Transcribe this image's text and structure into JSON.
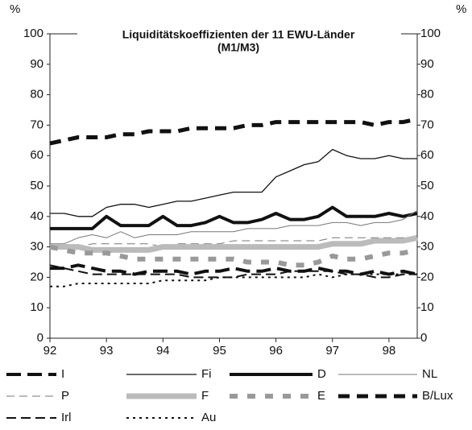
{
  "chart_data": {
    "type": "line",
    "title": "Liquiditätskoeffizienten der 11 EWU-Länder",
    "subtitle": "(M1/M3)",
    "y_label": "%",
    "x": [
      92,
      92.25,
      92.5,
      92.75,
      93,
      93.25,
      93.5,
      93.75,
      94,
      94.25,
      94.5,
      94.75,
      95,
      95.25,
      95.5,
      95.75,
      96,
      96.25,
      96.5,
      96.75,
      97,
      97.25,
      97.5,
      97.75,
      98,
      98.25,
      98.5
    ],
    "xlim": [
      92,
      98.5
    ],
    "xticks": [
      92,
      93,
      94,
      95,
      96,
      97,
      98
    ],
    "ylim": [
      0,
      100
    ],
    "yticks": [
      0,
      10,
      20,
      30,
      40,
      50,
      60,
      70,
      80,
      90,
      100
    ],
    "series": [
      {
        "name": "I",
        "color": "#111111",
        "values": [
          23,
          23,
          24,
          23,
          22,
          22,
          21,
          22,
          22,
          22,
          21,
          22,
          22,
          23,
          22,
          22,
          23,
          22,
          22,
          23,
          22,
          22,
          21,
          22,
          21,
          22,
          21
        ]
      },
      {
        "name": "Fi",
        "color": "#111111",
        "values": [
          41,
          41,
          40,
          40,
          43,
          44,
          44,
          43,
          44,
          45,
          45,
          46,
          47,
          48,
          48,
          48,
          53,
          55,
          57,
          58,
          62,
          60,
          59,
          59,
          60,
          59,
          59
        ]
      },
      {
        "name": "D",
        "color": "#111111",
        "values": [
          36,
          36,
          36,
          36,
          40,
          37,
          37,
          37,
          40,
          37,
          37,
          38,
          40,
          38,
          38,
          39,
          41,
          39,
          39,
          40,
          43,
          40,
          40,
          40,
          41,
          40,
          41
        ]
      },
      {
        "name": "NL",
        "color": "#777777",
        "values": [
          31,
          31,
          33,
          34,
          33,
          35,
          33,
          34,
          34,
          34,
          35,
          35,
          35,
          35,
          36,
          36,
          36,
          37,
          37,
          37,
          38,
          38,
          37,
          38,
          38,
          39,
          42
        ]
      },
      {
        "name": "P",
        "color": "#777777",
        "values": [
          30,
          30,
          30,
          31,
          31,
          31,
          31,
          31,
          30,
          31,
          31,
          31,
          31,
          32,
          32,
          32,
          32,
          32,
          32,
          32,
          33,
          33,
          33,
          33,
          33,
          33,
          33
        ]
      },
      {
        "name": "F",
        "color": "#bbbbbb",
        "values": [
          30,
          30,
          30,
          29,
          29,
          29,
          29,
          29,
          30,
          30,
          30,
          30,
          30,
          30,
          30,
          30,
          30,
          30,
          30,
          30,
          31,
          31,
          31,
          32,
          32,
          32,
          33
        ]
      },
      {
        "name": "E",
        "color": "#999999",
        "values": [
          30,
          29,
          28,
          28,
          28,
          27,
          26,
          26,
          26,
          26,
          26,
          26,
          26,
          26,
          25,
          25,
          25,
          24,
          24,
          25,
          27,
          26,
          26,
          27,
          28,
          28,
          29
        ]
      },
      {
        "name": "B/Lux",
        "color": "#111111",
        "values": [
          64,
          65,
          66,
          66,
          66,
          67,
          67,
          68,
          68,
          68,
          69,
          69,
          69,
          69,
          70,
          70,
          71,
          71,
          71,
          71,
          71,
          71,
          71,
          70,
          71,
          71,
          72
        ]
      },
      {
        "name": "Irl",
        "color": "#111111",
        "values": [
          24,
          23,
          22,
          21,
          21,
          21,
          21,
          21,
          21,
          21,
          20,
          20,
          20,
          20,
          21,
          21,
          21,
          22,
          22,
          22,
          22,
          21,
          21,
          20,
          20,
          21,
          21
        ]
      },
      {
        "name": "Au",
        "color": "#111111",
        "values": [
          17,
          17,
          18,
          18,
          18,
          18,
          18,
          18,
          19,
          19,
          19,
          19,
          20,
          20,
          20,
          20,
          20,
          20,
          20,
          21,
          20,
          21,
          21,
          21,
          21,
          21,
          21
        ]
      }
    ]
  }
}
